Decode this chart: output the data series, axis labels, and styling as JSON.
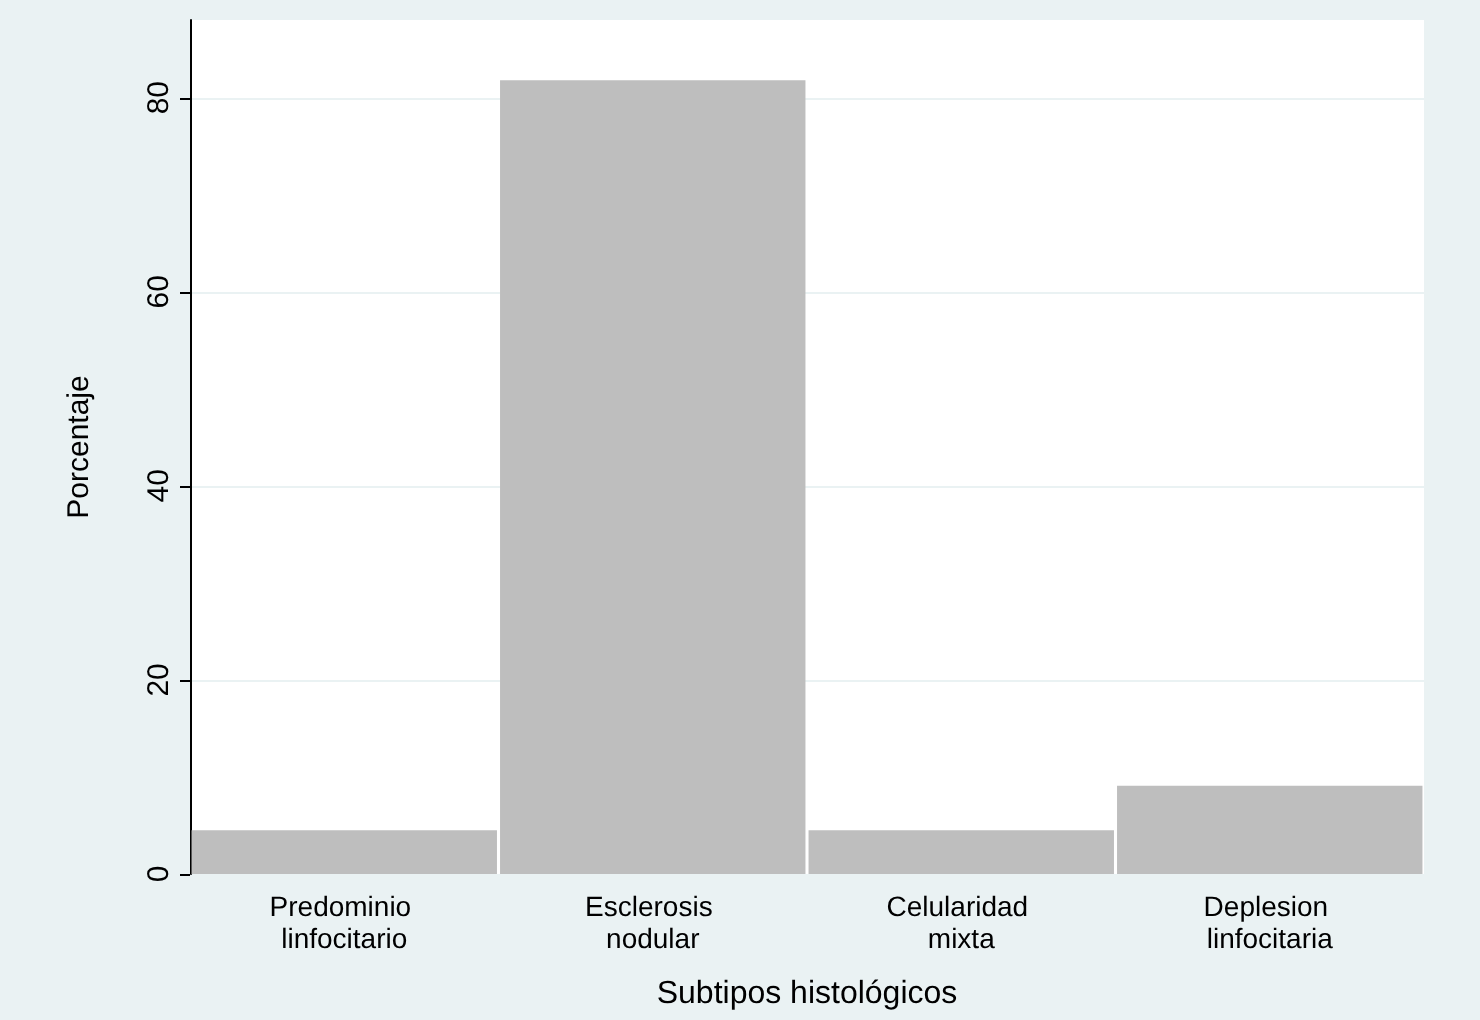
{
  "chart_data": {
    "type": "bar",
    "xlabel": "Subtipos histológicos",
    "ylabel": "Porcentaje",
    "categories": [
      "Predominio linfocitario",
      "Esclerosis nodular",
      "Celularidad mixta",
      "Deplesion linfocitaria"
    ],
    "values": [
      4.5,
      81.8,
      4.5,
      9.1
    ],
    "color": "#bebebe",
    "ylim": [
      0,
      88
    ],
    "yticks": [
      0,
      20,
      40,
      60,
      80
    ],
    "grid": "y"
  }
}
